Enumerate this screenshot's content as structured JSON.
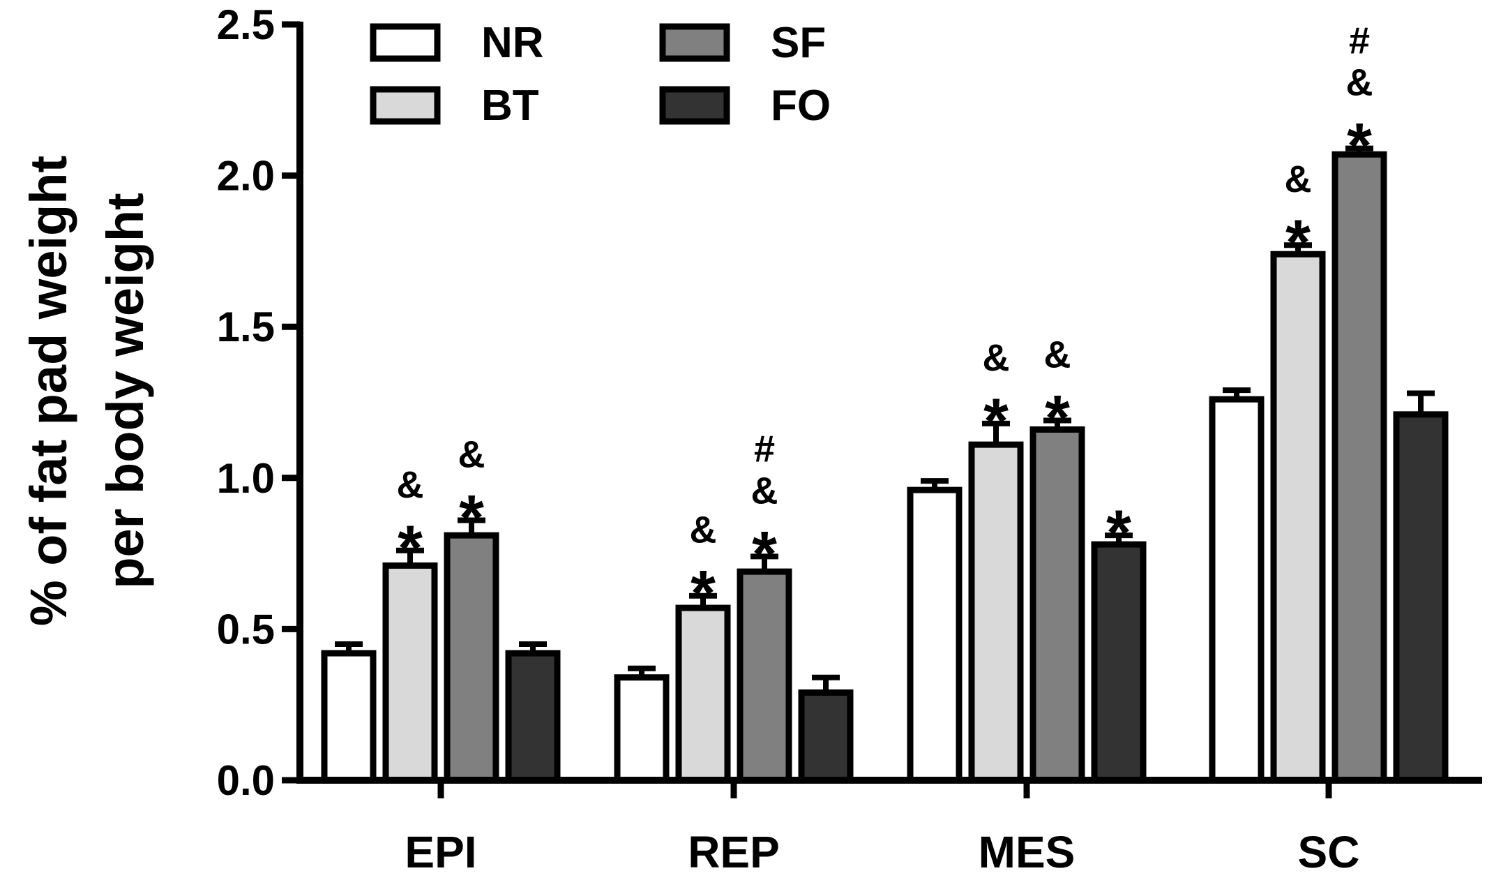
{
  "chart_data": {
    "type": "bar",
    "title": "",
    "xlabel": "",
    "ylabel_lines": [
      "% of fat pad weight",
      "per body weight"
    ],
    "ylim": [
      0,
      2.5
    ],
    "yticks": [
      "0.0",
      "0.5",
      "1.0",
      "1.5",
      "2.0",
      "2.5"
    ],
    "categories": [
      "EPI",
      "REP",
      "MES",
      "SC"
    ],
    "legend_position": "top-left",
    "series": [
      {
        "name": "NR",
        "color": "#ffffff",
        "values": [
          0.42,
          0.34,
          0.96,
          1.26
        ],
        "errors": [
          0.03,
          0.03,
          0.03,
          0.03
        ],
        "annotations": [
          [],
          [],
          [],
          []
        ]
      },
      {
        "name": "BT",
        "color": "#d9d9d9",
        "values": [
          0.71,
          0.57,
          1.11,
          1.74
        ],
        "errors": [
          0.05,
          0.04,
          0.07,
          0.03
        ],
        "annotations": [
          [
            "*",
            "&"
          ],
          [
            "*",
            "&"
          ],
          [
            "*",
            "&"
          ],
          [
            "*",
            "&"
          ]
        ]
      },
      {
        "name": "SF",
        "color": "#808080",
        "values": [
          0.81,
          0.69,
          1.16,
          2.07
        ],
        "errors": [
          0.05,
          0.05,
          0.03,
          0.02
        ],
        "annotations": [
          [
            "*",
            "&"
          ],
          [
            "*",
            "&",
            "#"
          ],
          [
            "*",
            "&"
          ],
          [
            "*",
            "&",
            "#"
          ]
        ]
      },
      {
        "name": "FO",
        "color": "#333333",
        "values": [
          0.42,
          0.29,
          0.78,
          1.21
        ],
        "errors": [
          0.03,
          0.05,
          0.03,
          0.07
        ],
        "annotations": [
          [],
          [],
          [
            "*"
          ],
          []
        ]
      }
    ]
  }
}
